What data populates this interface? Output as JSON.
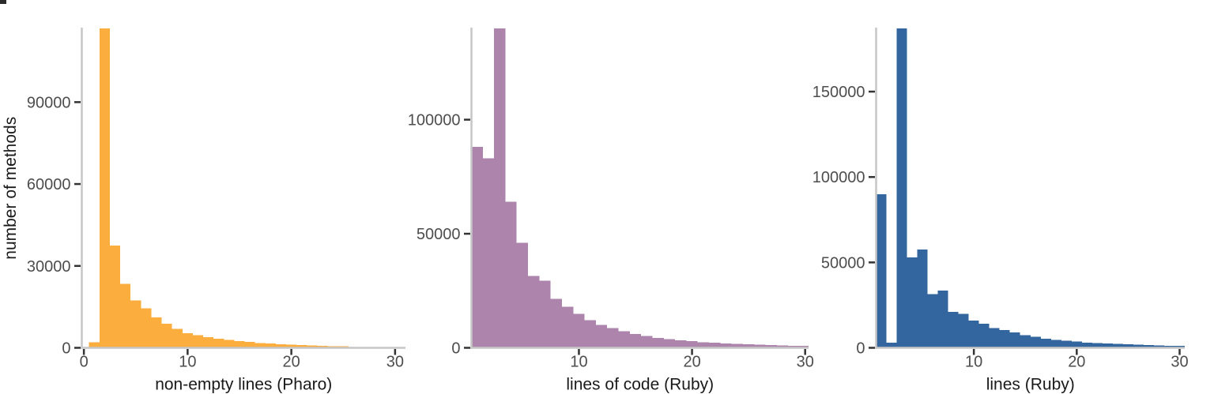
{
  "figure": {
    "background": "#ffffff",
    "n_panels": 3
  },
  "styles": {
    "axis_line_color": "#c6c6c6",
    "tick_mark_color": "#333333",
    "tick_label_color": "#4d4d4d",
    "axis_title_color": "#1a1a1a"
  },
  "chart_data": [
    {
      "type": "bar",
      "chart_kind": "histogram",
      "title": "",
      "xlabel": "non-empty lines (Pharo)",
      "ylabel": "number of methods",
      "bar_color": "#fbae3d",
      "bin_width": 1,
      "bin_centers": [
        1,
        2,
        3,
        4,
        5,
        6,
        7,
        8,
        9,
        10,
        11,
        12,
        13,
        14,
        15,
        16,
        17,
        18,
        19,
        20,
        21,
        22,
        23,
        24,
        25,
        26,
        27,
        28,
        29,
        30
      ],
      "values": [
        2000,
        117000,
        37500,
        23500,
        17300,
        14400,
        11200,
        8800,
        7000,
        5300,
        4600,
        3900,
        3300,
        2850,
        2450,
        2100,
        1800,
        1550,
        1350,
        1150,
        1000,
        870,
        750,
        650,
        550,
        300,
        180,
        130,
        100,
        80
      ],
      "peak_bin": 2,
      "peak_clipped_at_top": true,
      "xlim": [
        -0.2,
        31
      ],
      "ylim": [
        0,
        117000
      ],
      "x_ticks": [
        0,
        10,
        20,
        30
      ],
      "x_tick_labels": [
        "0",
        "10",
        "20",
        "30"
      ],
      "y_ticks": [
        0,
        30000,
        60000,
        90000
      ],
      "y_tick_labels": [
        "0",
        "30000",
        "60000",
        "90000"
      ],
      "grid": false,
      "legend": "none"
    },
    {
      "type": "bar",
      "chart_kind": "histogram",
      "title": "",
      "xlabel": "lines of code (Ruby)",
      "ylabel": "",
      "bar_color": "#ad84ac",
      "bin_width": 1,
      "bin_centers": [
        1,
        2,
        3,
        4,
        5,
        6,
        7,
        8,
        9,
        10,
        11,
        12,
        13,
        14,
        15,
        16,
        17,
        18,
        19,
        20,
        21,
        22,
        23,
        24,
        25,
        26,
        27,
        28,
        29,
        30
      ],
      "values": [
        88000,
        83000,
        140000,
        64000,
        46000,
        31500,
        29500,
        21500,
        18000,
        14800,
        12200,
        10000,
        8700,
        7300,
        6100,
        5200,
        4400,
        3800,
        3300,
        2900,
        2500,
        2200,
        1900,
        1700,
        1500,
        1300,
        1150,
        1000,
        900,
        800
      ],
      "peak_bin": 3,
      "peak_clipped_at_top": true,
      "xlim": [
        0.5,
        30.3
      ],
      "ylim": [
        0,
        140000
      ],
      "x_ticks": [
        10,
        20,
        30
      ],
      "x_tick_labels": [
        "10",
        "20",
        "30"
      ],
      "y_ticks": [
        0,
        50000,
        100000
      ],
      "y_tick_labels": [
        "0",
        "50000",
        "100000"
      ],
      "grid": false,
      "legend": "none"
    },
    {
      "type": "bar",
      "chart_kind": "histogram",
      "title": "",
      "xlabel": "lines (Ruby)",
      "ylabel": "",
      "bar_color": "#33669e",
      "bin_width": 1,
      "bin_centers": [
        1,
        2,
        3,
        4,
        5,
        6,
        7,
        8,
        9,
        10,
        11,
        12,
        13,
        14,
        15,
        16,
        17,
        18,
        19,
        20,
        21,
        22,
        23,
        24,
        25,
        26,
        27,
        28,
        29,
        30
      ],
      "values": [
        90000,
        3000,
        187000,
        53000,
        57500,
        31500,
        33500,
        21000,
        19800,
        16000,
        14200,
        11600,
        10500,
        8900,
        7500,
        6400,
        5300,
        4700,
        4100,
        3600,
        3100,
        2800,
        2500,
        2200,
        2000,
        1800,
        1600,
        1400,
        1250,
        1100
      ],
      "peak_bin": 3,
      "peak_clipped_at_top": true,
      "xlim": [
        0.5,
        30.5
      ],
      "ylim": [
        0,
        187000
      ],
      "x_ticks": [
        10,
        20,
        30
      ],
      "x_tick_labels": [
        "10",
        "20",
        "30"
      ],
      "y_ticks": [
        0,
        50000,
        100000,
        150000
      ],
      "y_tick_labels": [
        "0",
        "50000",
        "100000",
        "150000"
      ],
      "grid": false,
      "legend": "none"
    }
  ]
}
